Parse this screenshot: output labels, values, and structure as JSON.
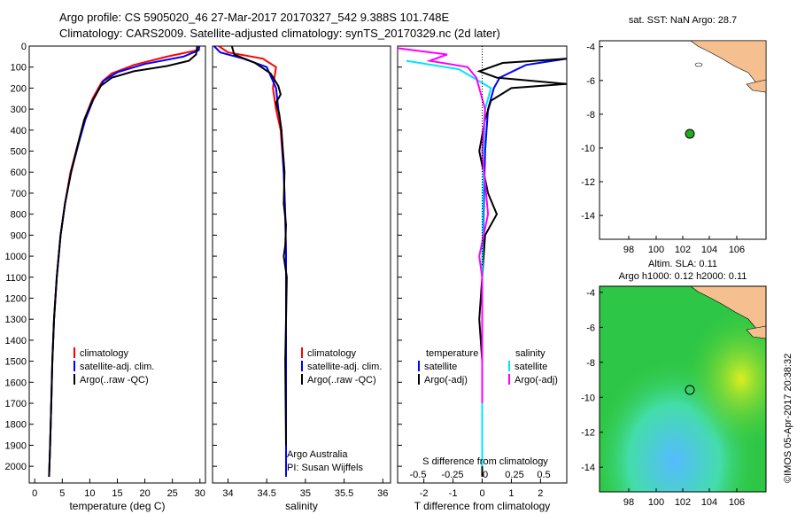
{
  "header": {
    "line1": "Argo profile: CS 5905020_46 27-Mar-2017 20170327_542 9.388S 101.748E",
    "line2": "Climatology: CARS2009. Satellite-adjusted climatology: synTS_20170329.nc (2d later)"
  },
  "colors": {
    "climatology": "#ff0000",
    "satellite": "#0000ff",
    "argo": "#000000",
    "sat_salinity": "#00e5ff",
    "argo_salinity_diff": "#ff00ff",
    "land": "#f5bf8f",
    "float_marker": "#22aa22"
  },
  "chart_data": [
    {
      "type": "line",
      "name": "temperature",
      "xlabel": "temperature (deg C)",
      "xlim": [
        -1,
        31
      ],
      "ylim": [
        0,
        2050
      ],
      "yticks": [
        0,
        100,
        200,
        300,
        400,
        500,
        600,
        700,
        800,
        900,
        1000,
        1100,
        1200,
        1300,
        1400,
        1500,
        1600,
        1700,
        1800,
        1900,
        2000
      ],
      "xticks": [
        0,
        5,
        10,
        15,
        20,
        25,
        30
      ],
      "legend": [
        "climatology",
        "satellite-adj. clim.",
        "Argo(..raw -QC)"
      ],
      "series": [
        {
          "name": "climatology",
          "color": "#ff0000",
          "x": [
            29.7,
            29.5,
            24,
            18,
            14,
            12.2,
            10.5,
            9,
            8,
            6.5,
            5.5,
            4.7,
            4,
            3.5,
            3.2,
            3,
            2.8,
            2.6
          ],
          "y": [
            0,
            20,
            50,
            90,
            130,
            170,
            250,
            350,
            450,
            600,
            750,
            900,
            1100,
            1300,
            1500,
            1700,
            1900,
            2050
          ]
        },
        {
          "name": "satellite-adj. clim.",
          "color": "#0000ff",
          "x": [
            29.9,
            29.8,
            27,
            20,
            15,
            12.5,
            10.7,
            9.2,
            8.1,
            6.6,
            5.5,
            4.7,
            4,
            3.5,
            3.2,
            3,
            2.8,
            2.6
          ],
          "y": [
            0,
            20,
            50,
            85,
            125,
            165,
            250,
            350,
            450,
            600,
            750,
            900,
            1100,
            1300,
            1500,
            1700,
            1900,
            2050
          ]
        },
        {
          "name": "Argo(..raw -QC)",
          "color": "#000000",
          "x": [
            29.5,
            29.3,
            28,
            24,
            18,
            14,
            12,
            10.3,
            9,
            8,
            6.6,
            5.5,
            4.7,
            4,
            3.5,
            3.2,
            3,
            2.8,
            2.6
          ],
          "y": [
            0,
            40,
            70,
            95,
            120,
            150,
            190,
            270,
            350,
            450,
            600,
            750,
            900,
            1100,
            1300,
            1500,
            1700,
            1900,
            2050
          ]
        }
      ]
    },
    {
      "type": "line",
      "name": "salinity",
      "xlabel": "salinity",
      "xlim": [
        33.8,
        36.1
      ],
      "ylim": [
        0,
        2050
      ],
      "xticks": [
        34,
        34.5,
        35,
        35.5,
        36
      ],
      "legend": [
        "climatology",
        "satellite-adj. clim.",
        "Argo(..raw -QC)"
      ],
      "annotation": [
        "Argo Australia",
        "PI: Susan Wijffels"
      ],
      "series": [
        {
          "name": "climatology",
          "color": "#ff0000",
          "x": [
            33.88,
            34.0,
            34.45,
            34.62,
            34.58,
            34.62,
            34.68,
            34.72,
            34.74,
            34.75,
            34.75,
            34.75,
            34.75
          ],
          "y": [
            0,
            30,
            60,
            100,
            200,
            300,
            400,
            600,
            800,
            1000,
            1400,
            1800,
            2050
          ]
        },
        {
          "name": "satellite-adj. clim.",
          "color": "#0000ff",
          "x": [
            33.82,
            33.9,
            34.2,
            34.5,
            34.62,
            34.65,
            34.69,
            34.72,
            34.74,
            34.75,
            34.75,
            34.75,
            34.75
          ],
          "y": [
            0,
            30,
            60,
            100,
            200,
            300,
            400,
            600,
            800,
            1000,
            1400,
            1800,
            2050
          ]
        },
        {
          "name": "Argo(..raw -QC)",
          "color": "#000000",
          "x": [
            34.05,
            34.08,
            34.35,
            34.55,
            34.65,
            34.68,
            34.62,
            34.66,
            34.69,
            34.71,
            34.73,
            34.72,
            34.75,
            34.74,
            34.72,
            34.76,
            34.74,
            34.75
          ],
          "y": [
            0,
            40,
            80,
            130,
            190,
            230,
            270,
            320,
            400,
            500,
            600,
            750,
            850,
            950,
            1000,
            1100,
            1500,
            1900
          ]
        }
      ]
    },
    {
      "type": "line",
      "name": "difference",
      "xlabel": "T difference from climatology",
      "toplabel": "S difference from climatology",
      "xlim": [
        -2.9,
        2.9
      ],
      "ylim": [
        0,
        2050
      ],
      "xticks": [
        -2,
        -1,
        0,
        1,
        2
      ],
      "topticks": [
        "-0.5",
        "-0.25",
        "0",
        "0.25",
        "0.5"
      ],
      "legend_titles": [
        "temperature",
        "salinity"
      ],
      "legend": [
        "satellite",
        "Argo(-adj)",
        "satellite",
        "Argo(-adj)"
      ],
      "series": [
        {
          "name": "temperature satellite",
          "color": "#0000ff",
          "x": [
            2.9,
            1.5,
            0.6,
            0.4,
            0.2,
            0.1,
            0.05,
            0,
            0,
            0
          ],
          "y": [
            60,
            90,
            150,
            200,
            300,
            500,
            800,
            1100,
            1500,
            2050
          ]
        },
        {
          "name": "temperature Argo(-adj)",
          "color": "#000000",
          "x": [
            2.9,
            0.7,
            -0.1,
            0.5,
            2.9,
            1.0,
            0.3,
            0.1,
            -0.1,
            0.2,
            0.5,
            0.1,
            0,
            -0.1,
            0,
            0,
            0
          ],
          "y": [
            60,
            80,
            120,
            150,
            180,
            200,
            260,
            350,
            500,
            700,
            800,
            900,
            1100,
            1300,
            1500,
            1800,
            2050
          ]
        },
        {
          "name": "salinity satellite",
          "color": "#00e5ff",
          "x": [
            -2.6,
            -0.8,
            0.3,
            0.1,
            0.05,
            0.02,
            0,
            0,
            0
          ],
          "y": [
            70,
            110,
            200,
            300,
            500,
            800,
            1100,
            1500,
            2000
          ]
        },
        {
          "name": "salinity Argo(-adj)",
          "color": "#ff00ff",
          "x": [
            -2.9,
            -1.2,
            -1.8,
            -0.5,
            -0.2,
            0.1,
            0,
            0.2,
            -0.1,
            0,
            0,
            0
          ],
          "y": [
            10,
            40,
            70,
            100,
            150,
            300,
            500,
            800,
            1000,
            1100,
            1400,
            1700
          ]
        }
      ]
    }
  ],
  "map1": {
    "title": "sat. SST: NaN Argo: 28.7",
    "xticks": [
      "98",
      "100",
      "102",
      "104",
      "106"
    ],
    "yticks": [
      "-4",
      "-6",
      "-8",
      "-10",
      "-12",
      "-14"
    ]
  },
  "map2": {
    "title1": "Altim. SLA: 0.11",
    "title2": "Argo h1000: 0.12 h2000: 0.11",
    "xticks": [
      "98",
      "100",
      "102",
      "104",
      "106"
    ],
    "yticks": [
      "-4",
      "-6",
      "-8",
      "-10",
      "-12",
      "-14"
    ],
    "credit": "©IMOS 05-Apr-2017 20:38:32"
  }
}
